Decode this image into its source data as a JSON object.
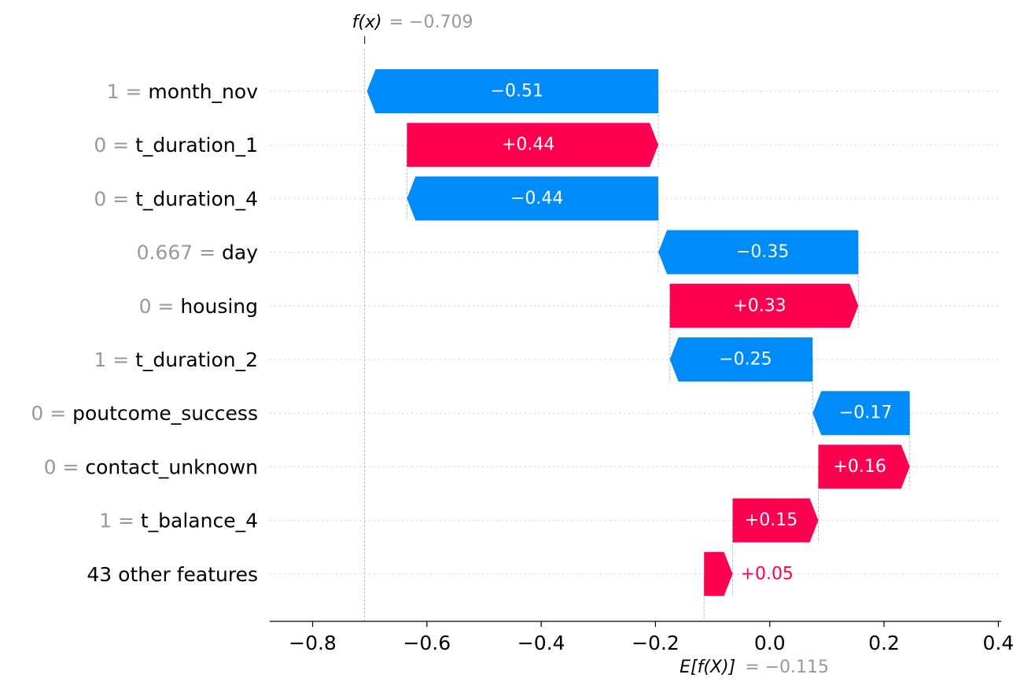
{
  "chart_data": {
    "type": "waterfall",
    "fx_label": "f(x)",
    "fx_value_text": "= −0.709",
    "fx_value": -0.709,
    "base_label": "E[f(X)]",
    "base_value_text": "= −0.115",
    "base_value": -0.115,
    "xlim": [
      -0.875,
      0.405
    ],
    "x_ticks": [
      -0.8,
      -0.6,
      -0.4,
      -0.2,
      0.0,
      0.2,
      0.4
    ],
    "x_tick_labels": [
      "−0.8",
      "−0.6",
      "−0.4",
      "−0.2",
      "0.0",
      "0.2",
      "0.4"
    ],
    "features": [
      {
        "value": "1 = ",
        "name": "month_nov",
        "contribution": -0.51,
        "label": "−0.51"
      },
      {
        "value": "0 = ",
        "name": "t_duration_1",
        "contribution": 0.44,
        "label": "+0.44"
      },
      {
        "value": "0 = ",
        "name": "t_duration_4",
        "contribution": -0.44,
        "label": "−0.44"
      },
      {
        "value": "0.667 = ",
        "name": "day",
        "contribution": -0.35,
        "label": "−0.35"
      },
      {
        "value": "0 = ",
        "name": "housing",
        "contribution": 0.33,
        "label": "+0.33"
      },
      {
        "value": "1 = ",
        "name": "t_duration_2",
        "contribution": -0.25,
        "label": "−0.25"
      },
      {
        "value": "0 = ",
        "name": "poutcome_success",
        "contribution": -0.17,
        "label": "−0.17"
      },
      {
        "value": "0 = ",
        "name": "contact_unknown",
        "contribution": 0.16,
        "label": "+0.16"
      },
      {
        "value": "1 = ",
        "name": "t_balance_4",
        "contribution": 0.15,
        "label": "+0.15"
      },
      {
        "value": "",
        "name": "43 other features",
        "contribution": 0.05,
        "label": "+0.05"
      }
    ],
    "colors": {
      "positive": "#ff0051",
      "negative": "#008bfb",
      "value_text": "#999999",
      "grid": "#cccccc"
    }
  }
}
